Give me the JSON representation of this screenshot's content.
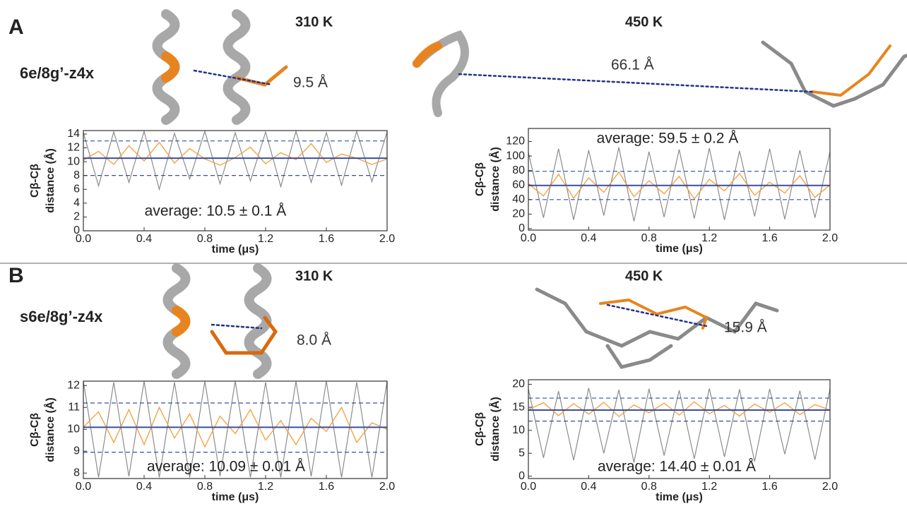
{
  "figure": {
    "panels": [
      {
        "label": "A",
        "name": "6e/8g’-z4x",
        "conditions": [
          {
            "temperature": "310 K",
            "distance": "9.5 Å"
          },
          {
            "temperature": "450 K",
            "distance": "66.1 Å"
          }
        ]
      },
      {
        "label": "B",
        "name": "s6e/8g’-z4x",
        "conditions": [
          {
            "temperature": "310 K",
            "distance": "8.0 Å"
          },
          {
            "temperature": "450 K",
            "distance": "15.9 Å"
          }
        ]
      }
    ]
  },
  "chart_data": [
    {
      "type": "line",
      "annotation": "average: 10.5 ± 0.1 Å",
      "ylabel": [
        "Cβ-Cβ",
        "distance (Å)"
      ],
      "xlabel": "time (μs)",
      "x": [
        0,
        0.1,
        0.2,
        0.3,
        0.4,
        0.5,
        0.6,
        0.7,
        0.8,
        0.9,
        1.0,
        1.1,
        1.2,
        1.3,
        1.4,
        1.5,
        1.6,
        1.7,
        1.8,
        1.9,
        2.0
      ],
      "xlim": [
        0,
        2
      ],
      "xticks": [
        {
          "value": 0,
          "label": "0.0"
        },
        0.4,
        0.8,
        1.2,
        1.6,
        {
          "value": 2,
          "label": "2.0"
        }
      ],
      "ylim": [
        0,
        14.5
      ],
      "yticks": [
        0,
        2,
        4,
        6,
        8,
        10,
        12,
        14
      ],
      "series": [
        {
          "color": "#8c8c8c",
          "values": [
            14.2,
            6.5,
            14.3,
            7,
            14.4,
            6,
            14.1,
            7.5,
            14.4,
            6.8,
            14.2,
            7.2,
            14.3,
            6.4,
            14.4,
            7,
            14.2,
            6.6,
            14.4,
            7.1,
            14.3
          ]
        },
        {
          "color": "#f5a343",
          "values": [
            10.2,
            11.5,
            9.6,
            12.3,
            10.1,
            12.8,
            9.8,
            11.9,
            10.4,
            9.5,
            10.6,
            12.1,
            9.7,
            11.3,
            10.3,
            12.6,
            9.9,
            11.1,
            10.5,
            9.6,
            10.4
          ]
        }
      ],
      "reference_lines": [
        {
          "value": 10.5,
          "dashed": false
        },
        {
          "value": 8,
          "dashed": true
        },
        {
          "value": 13,
          "dashed": true
        }
      ],
      "reference_color": "#3a4ea0"
    },
    {
      "type": "line",
      "annotation": "average: 59.5 ± 0.2 Å",
      "ylabel": [
        "Cβ-Cβ",
        "distance (Å)"
      ],
      "xlabel": "time (μs)",
      "x": [
        0,
        0.1,
        0.2,
        0.3,
        0.4,
        0.5,
        0.6,
        0.7,
        0.8,
        0.9,
        1.0,
        1.1,
        1.2,
        1.3,
        1.4,
        1.5,
        1.6,
        1.7,
        1.8,
        1.9,
        2.0
      ],
      "xlim": [
        0,
        2
      ],
      "xticks": [
        {
          "value": 0,
          "label": "0.0"
        },
        0.4,
        0.8,
        1.2,
        1.6,
        {
          "value": 2,
          "label": "2.0"
        }
      ],
      "ylim": [
        -2,
        138
      ],
      "yticks": [
        0,
        20,
        40,
        60,
        80,
        100,
        120
      ],
      "series": [
        {
          "color": "#8c8c8c",
          "values": [
            105,
            15,
            110,
            12,
            108,
            18,
            112,
            10,
            106,
            16,
            109,
            14,
            111,
            12,
            107,
            17,
            110,
            13,
            108,
            15,
            106
          ]
        },
        {
          "color": "#f5a343",
          "values": [
            62,
            45,
            75,
            42,
            70,
            50,
            78,
            44,
            66,
            48,
            72,
            41,
            68,
            52,
            76,
            46,
            64,
            49,
            73,
            43,
            60
          ]
        }
      ],
      "reference_lines": [
        {
          "value": 59.5,
          "dashed": false
        },
        {
          "value": 40,
          "dashed": true
        },
        {
          "value": 79,
          "dashed": true
        }
      ],
      "reference_color": "#3a4ea0"
    },
    {
      "type": "line",
      "annotation": "average: 10.09 ± 0.01 Å",
      "ylabel": [
        "Cβ-Cβ",
        "distance (Å)"
      ],
      "xlabel": "time (μs)",
      "x": [
        0,
        0.1,
        0.2,
        0.3,
        0.4,
        0.5,
        0.6,
        0.7,
        0.8,
        0.9,
        1.0,
        1.1,
        1.2,
        1.3,
        1.4,
        1.5,
        1.6,
        1.7,
        1.8,
        1.9,
        2.0
      ],
      "xlim": [
        0,
        2
      ],
      "xticks": [
        {
          "value": 0,
          "label": "0.0"
        },
        0.4,
        0.8,
        1.2,
        1.6,
        {
          "value": 2,
          "label": "2.0"
        }
      ],
      "ylim": [
        7.75,
        12.2
      ],
      "yticks": [
        8,
        9,
        10,
        11,
        12
      ],
      "series": [
        {
          "color": "#8c8c8c",
          "values": [
            12.2,
            7.8,
            12.15,
            7.85,
            12.2,
            7.8,
            12.15,
            7.8,
            12.2,
            7.85,
            12.2,
            7.8,
            12.15,
            7.8,
            12.2,
            7.85,
            12.2,
            7.8,
            12.15,
            7.8,
            12.2
          ]
        },
        {
          "color": "#f5a343",
          "values": [
            10.1,
            10.8,
            9.4,
            10.9,
            9.3,
            11.0,
            9.6,
            10.7,
            9.2,
            10.6,
            9.8,
            10.9,
            9.5,
            10.4,
            9.3,
            10.5,
            9.9,
            11.0,
            9.4,
            10.3,
            10.0
          ]
        }
      ],
      "reference_lines": [
        {
          "value": 10.09,
          "dashed": false
        },
        {
          "value": 8.95,
          "dashed": true
        },
        {
          "value": 11.2,
          "dashed": true
        }
      ],
      "reference_color": "#3a4ea0"
    },
    {
      "type": "line",
      "annotation": "average: 14.40 ± 0.01 Å",
      "ylabel": [
        "Cβ-Cβ",
        "distance (Å)"
      ],
      "xlabel": "time (μs)",
      "x": [
        0,
        0.1,
        0.2,
        0.3,
        0.4,
        0.5,
        0.6,
        0.7,
        0.8,
        0.9,
        1.0,
        1.1,
        1.2,
        1.3,
        1.4,
        1.5,
        1.6,
        1.7,
        1.8,
        1.9,
        2.0
      ],
      "xlim": [
        0,
        2
      ],
      "xticks": [
        {
          "value": 0,
          "label": "0.0"
        },
        0.4,
        0.8,
        1.2,
        1.6,
        {
          "value": 2,
          "label": "2.0"
        }
      ],
      "ylim": [
        -0.5,
        21
      ],
      "yticks": [
        0,
        5,
        10,
        15,
        20
      ],
      "series": [
        {
          "color": "#8c8c8c",
          "values": [
            19,
            4,
            18.5,
            3.5,
            19.2,
            5,
            18.8,
            3,
            19,
            4.5,
            18.7,
            3.8,
            19.1,
            4.2,
            18.9,
            3.2,
            19,
            4.8,
            18.6,
            3.6,
            19
          ]
        },
        {
          "color": "#f5a343",
          "values": [
            14.5,
            16,
            13.2,
            15.8,
            13.5,
            16.1,
            13.0,
            15.5,
            13.8,
            15.9,
            13.3,
            16.2,
            13.6,
            15.4,
            13.1,
            15.7,
            13.9,
            16,
            13.4,
            15.6,
            14.4
          ]
        }
      ],
      "reference_lines": [
        {
          "value": 14.4,
          "dashed": false
        },
        {
          "value": 12,
          "dashed": true
        },
        {
          "value": 17,
          "dashed": true
        }
      ],
      "reference_color": "#3a4ea0"
    }
  ]
}
